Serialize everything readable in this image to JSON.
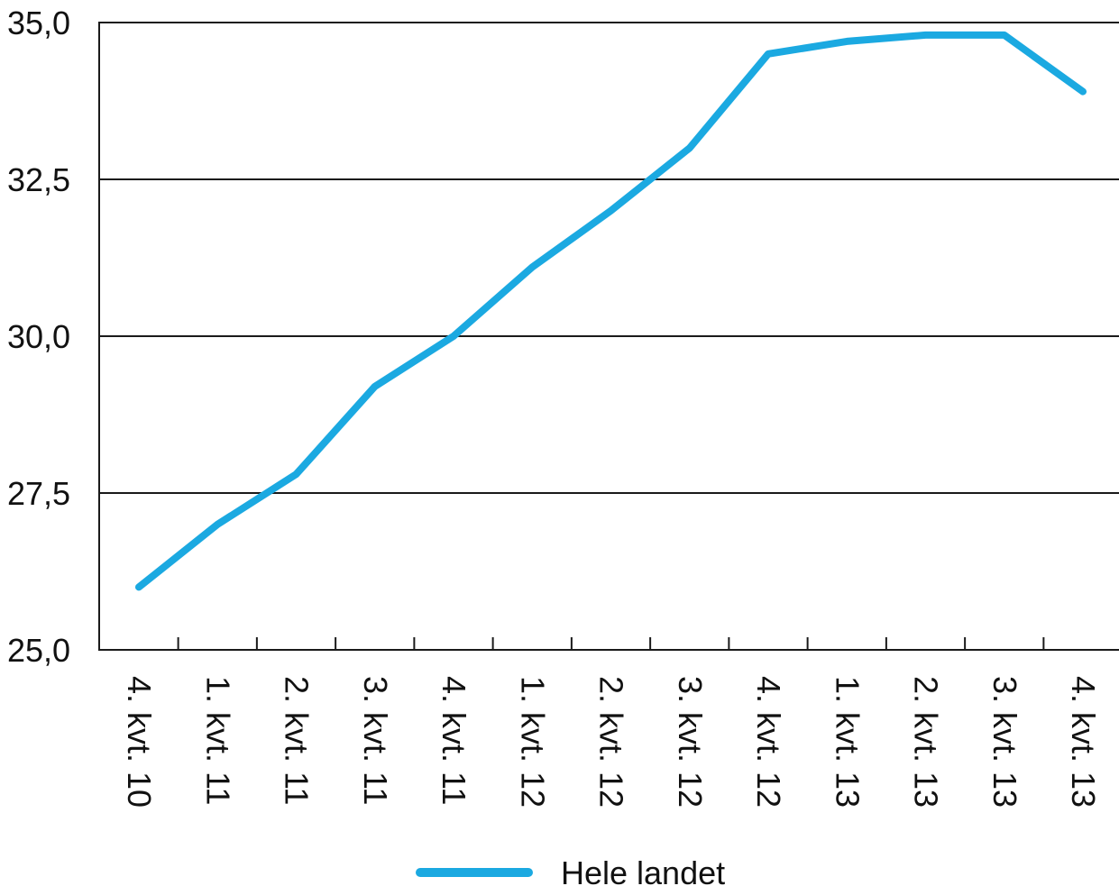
{
  "chart_data": {
    "type": "line",
    "title": "",
    "xlabel": "",
    "ylabel": "",
    "ylim": [
      25.0,
      35.0
    ],
    "yticks": [
      25.0,
      27.5,
      30.0,
      32.5,
      35.0
    ],
    "ytick_labels": [
      "25,0",
      "27,5",
      "30,0",
      "32,5",
      "35,0"
    ],
    "grid": "horizontal",
    "legend_position": "bottom",
    "categories": [
      "4. kvt. 10",
      "1. kvt. 11",
      "2. kvt. 11",
      "3. kvt. 11",
      "4. kvt. 11",
      "1. kvt. 12",
      "2. kvt. 12",
      "3. kvt. 12",
      "4. kvt. 12",
      "1. kvt. 13",
      "2. kvt. 13",
      "3. kvt. 13",
      "4. kvt. 13"
    ],
    "series": [
      {
        "name": "Hele landet",
        "color": "#1ba9e1",
        "values": [
          26.0,
          27.0,
          27.8,
          29.2,
          30.0,
          31.1,
          32.0,
          33.0,
          34.5,
          34.7,
          34.8,
          34.8,
          33.9
        ]
      }
    ]
  }
}
